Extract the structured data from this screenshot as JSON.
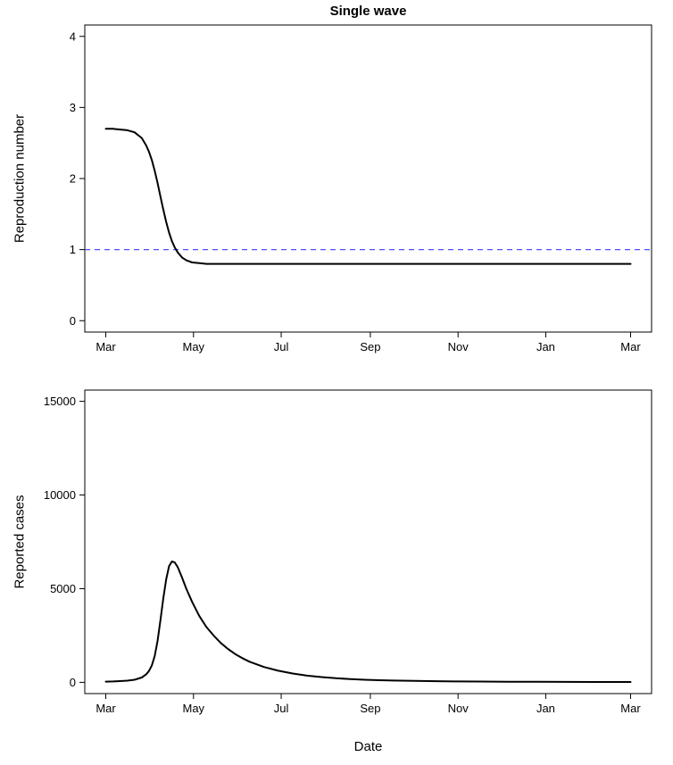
{
  "chart_data": [
    {
      "type": "line",
      "title": "Single wave",
      "ylabel": "Reproduction number",
      "xlabel": "",
      "xlim": [
        0,
        365
      ],
      "ylim": [
        0,
        4
      ],
      "yticks": [
        0,
        1,
        2,
        3,
        4
      ],
      "xtick_days": [
        0,
        61,
        122,
        184,
        245,
        306,
        365
      ],
      "xtick_labels": [
        "Mar",
        "May",
        "Jul",
        "Sep",
        "Nov",
        "Jan",
        "Mar"
      ],
      "grid": false,
      "legend": null,
      "refline": {
        "y": 1,
        "color": "#5050ff",
        "dash": "6,5",
        "width": 1.2
      },
      "series": [
        {
          "name": "reproduction-number",
          "color": "#000000",
          "width": 2,
          "dash": null,
          "x": [
            0,
            5,
            10,
            15,
            20,
            25,
            28,
            30,
            32,
            34,
            36,
            38,
            40,
            42,
            44,
            46,
            48,
            50,
            53,
            56,
            60,
            65,
            70,
            80,
            90,
            110,
            140,
            180,
            220,
            260,
            300,
            340,
            365
          ],
          "y": [
            2.7,
            2.7,
            2.69,
            2.68,
            2.65,
            2.57,
            2.47,
            2.38,
            2.26,
            2.11,
            1.94,
            1.75,
            1.56,
            1.39,
            1.24,
            1.12,
            1.03,
            0.96,
            0.89,
            0.85,
            0.82,
            0.81,
            0.8,
            0.8,
            0.8,
            0.8,
            0.8,
            0.8,
            0.8,
            0.8,
            0.8,
            0.8,
            0.8
          ]
        }
      ]
    },
    {
      "type": "line",
      "title": "",
      "ylabel": "Reported cases",
      "xlabel": "Date",
      "xlim": [
        0,
        365
      ],
      "ylim": [
        0,
        15000
      ],
      "yticks": [
        0,
        5000,
        10000,
        15000
      ],
      "xtick_days": [
        0,
        61,
        122,
        184,
        245,
        306,
        365
      ],
      "xtick_labels": [
        "Mar",
        "May",
        "Jul",
        "Sep",
        "Nov",
        "Jan",
        "Mar"
      ],
      "grid": false,
      "legend": null,
      "refline": null,
      "series": [
        {
          "name": "reported-cases",
          "color": "#000000",
          "width": 2,
          "dash": null,
          "x": [
            0,
            5,
            10,
            15,
            20,
            25,
            28,
            30,
            32,
            34,
            36,
            38,
            40,
            42,
            44,
            46,
            48,
            50,
            53,
            56,
            60,
            65,
            70,
            75,
            80,
            85,
            90,
            95,
            100,
            110,
            120,
            130,
            140,
            150,
            160,
            170,
            180,
            190,
            200,
            215,
            230,
            245,
            260,
            280,
            300,
            320,
            340,
            365
          ],
          "y": [
            40,
            50,
            65,
            90,
            140,
            260,
            420,
            600,
            900,
            1400,
            2200,
            3300,
            4500,
            5500,
            6200,
            6450,
            6400,
            6150,
            5600,
            5000,
            4300,
            3550,
            2950,
            2500,
            2100,
            1780,
            1510,
            1290,
            1100,
            820,
            620,
            470,
            360,
            280,
            220,
            175,
            140,
            115,
            95,
            75,
            60,
            50,
            42,
            34,
            28,
            24,
            20,
            18
          ]
        }
      ]
    }
  ]
}
